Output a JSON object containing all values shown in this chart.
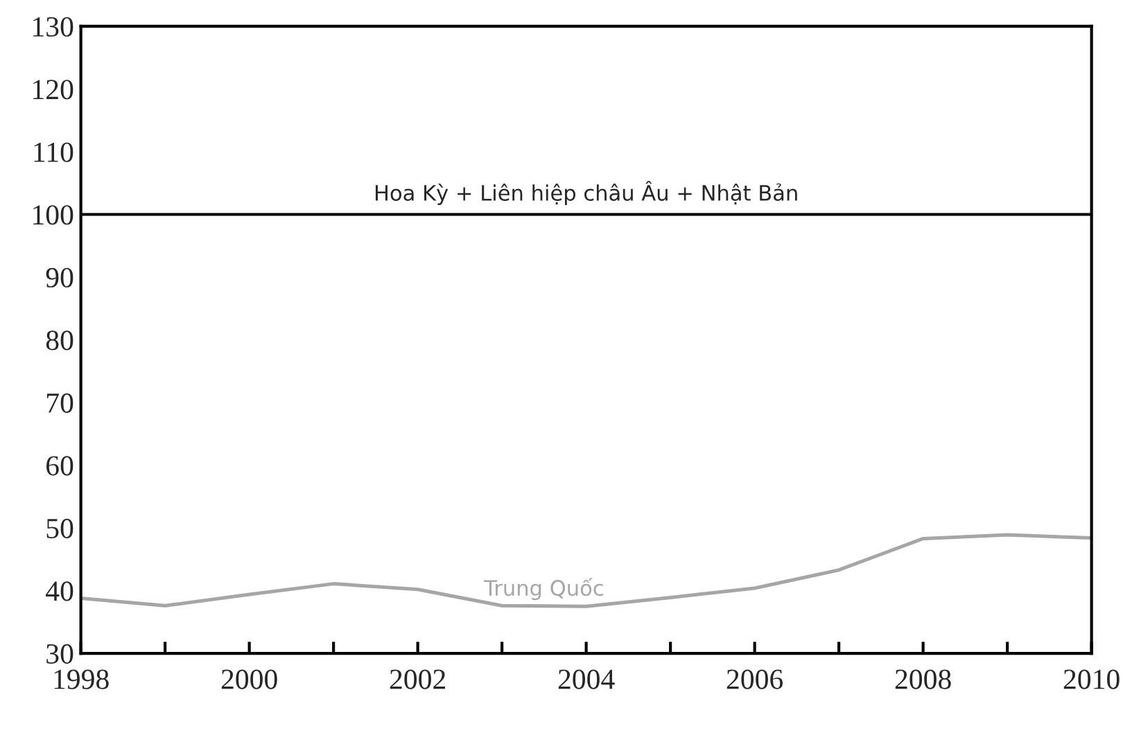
{
  "chart_data": {
    "type": "line",
    "x": [
      1998,
      1999,
      2000,
      2001,
      2002,
      2003,
      2004,
      2005,
      2006,
      2007,
      2008,
      2009,
      2010
    ],
    "series": [
      {
        "name": "Trung Quốc",
        "color": "#a6a6a6",
        "values": [
          38.8,
          37.6,
          39.4,
          41.1,
          40.2,
          37.6,
          37.5,
          38.9,
          40.4,
          43.3,
          48.3,
          48.9,
          48.4
        ]
      }
    ],
    "ref_lines": [
      {
        "axis": "y",
        "value": 100,
        "label": "Hoa Kỳ + Liên hiệp châu Âu + Nhật Bản",
        "color": "#000000",
        "line_style": "solid"
      }
    ],
    "xlim": [
      1998,
      2010
    ],
    "ylim": [
      30,
      130
    ],
    "xticks": [
      1998,
      {
        "value": 1999,
        "label": null
      },
      2000,
      {
        "value": 2001,
        "label": null
      },
      2002,
      {
        "value": 2003,
        "label": null
      },
      2004,
      {
        "value": 2005,
        "label": null
      },
      2006,
      {
        "value": 2007,
        "label": null
      },
      2008,
      {
        "value": 2009,
        "label": null
      },
      2010
    ],
    "yticks": [
      30,
      40,
      50,
      60,
      70,
      80,
      90,
      100,
      110,
      120,
      130
    ],
    "grid": false,
    "legend": false,
    "marker": "none",
    "line_style": "solid"
  }
}
